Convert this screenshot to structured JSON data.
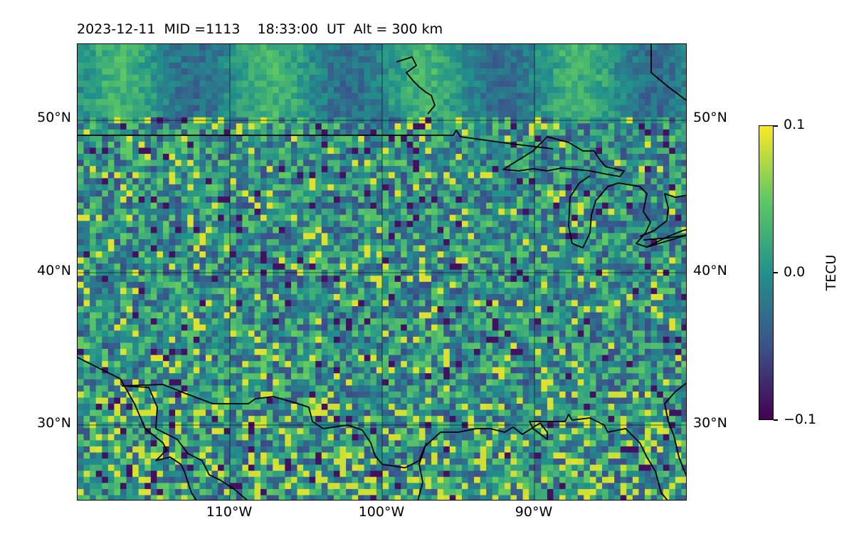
{
  "title": "2023-12-11  MID =1113    18:33:00  UT  Alt = 300 km",
  "map": {
    "region": "Central and southern United States with Great Lakes and Gulf of Mexico",
    "lon_range": [
      -120,
      -80
    ],
    "lat_range": [
      25,
      55
    ],
    "lat_labels": [
      "50°N",
      "40°N",
      "30°N"
    ],
    "lon_labels": [
      "110°W",
      "100°W",
      "90°W"
    ],
    "boundaries": "coastlines and national borders"
  },
  "colorbar": {
    "label": "TECU",
    "max_label": "0.1",
    "mid_label": "0.0",
    "min_label": "−0.1",
    "range": [
      -0.1,
      0.1
    ],
    "colormap": "viridis",
    "colors": [
      "#440154",
      "#3b528b",
      "#21918c",
      "#5ec962",
      "#fde725"
    ]
  }
}
